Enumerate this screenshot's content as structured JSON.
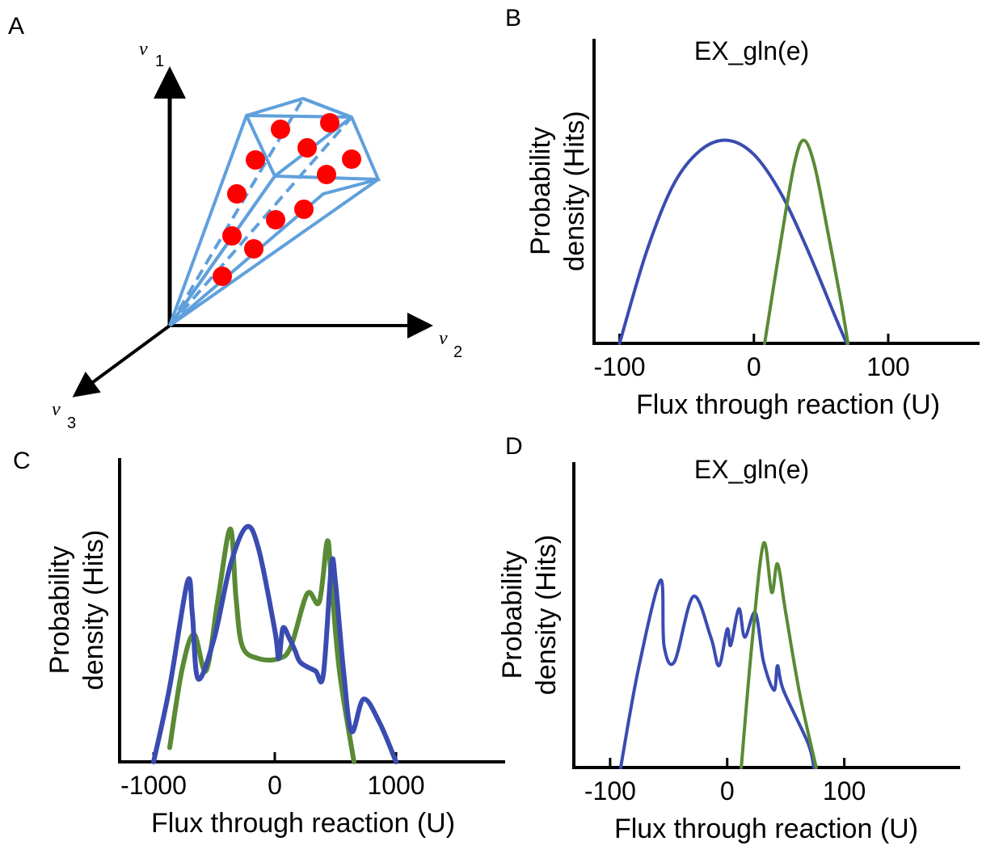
{
  "panel_labels": [
    "A",
    "B",
    "C",
    "D"
  ],
  "diagram": {
    "axis_labels": [
      {
        "symbol": "v",
        "index": "1"
      },
      {
        "symbol": "v",
        "index": "2"
      },
      {
        "symbol": "v",
        "index": "3"
      }
    ]
  },
  "chart_data": [
    {
      "type": "line",
      "title": "EX_gln(e)",
      "xlabel": "Flux through reaction (U)",
      "ylabel": [
        "Probability",
        "density (Hits)"
      ],
      "xlim": [
        -119,
        168
      ],
      "xticks": [
        -100,
        0,
        100
      ],
      "ylim": [
        0,
        1.5
      ],
      "series": [
        {
          "color": "#3a4cb0",
          "x": [
            -100,
            -80,
            -60,
            -40,
            -20,
            0,
            20,
            40,
            60,
            69
          ],
          "values": [
            0,
            0.45,
            0.78,
            0.95,
            1.0,
            0.93,
            0.74,
            0.46,
            0.14,
            0
          ]
        },
        {
          "color": "#5a8a35",
          "x": [
            8,
            20,
            30,
            37,
            45,
            55,
            65,
            70
          ],
          "values": [
            0,
            0.5,
            0.88,
            1.0,
            0.88,
            0.55,
            0.2,
            0
          ]
        }
      ]
    },
    {
      "type": "line",
      "xlabel": "Flux through reaction (U)",
      "ylabel": [
        "Probability",
        "density (Hits)"
      ],
      "xlim": [
        -1280,
        1900
      ],
      "xticks": [
        -1000,
        0,
        1000
      ],
      "ylim": [
        0,
        1.5
      ],
      "series": [
        {
          "color": "#5a8a35",
          "x": [
            -867,
            -767,
            -667,
            -567,
            -467,
            -367,
            -320,
            -267,
            -133,
            33,
            133,
            267,
            367,
            433,
            467,
            533,
            653
          ],
          "values": [
            0.07,
            0.45,
            0.63,
            0.45,
            0.81,
            1.15,
            0.81,
            0.57,
            0.51,
            0.51,
            0.57,
            0.83,
            0.79,
            1.09,
            0.89,
            0.45,
            0
          ]
        },
        {
          "color": "#3a4cb0",
          "x": [
            -1000,
            -867,
            -720,
            -680,
            -633,
            -500,
            -367,
            -233,
            -133,
            0,
            33,
            67,
            120,
            167,
            213,
            333,
            400,
            467,
            500,
            567,
            633,
            733,
            867,
            1000
          ],
          "values": [
            0,
            0.37,
            0.89,
            0.73,
            0.41,
            0.61,
            0.97,
            1.16,
            1.05,
            0.65,
            0.51,
            0.66,
            0.61,
            0.55,
            0.49,
            0.45,
            0.43,
            0.97,
            0.89,
            0.45,
            0.15,
            0.31,
            0.19,
            0
          ]
        }
      ]
    },
    {
      "type": "line",
      "title": "EX_gln(e)",
      "xlabel": "Flux through reaction (U)",
      "ylabel": [
        "Probability",
        "density (Hits)"
      ],
      "xlim": [
        -131,
        199
      ],
      "xticks": [
        -100,
        0,
        100
      ],
      "ylim": [
        0,
        1.5
      ],
      "series": [
        {
          "color": "#3a4cb0",
          "x": [
            -91,
            -76,
            -57,
            -54,
            -45,
            -29,
            -14,
            -7,
            0,
            3,
            10,
            15,
            24,
            31,
            40,
            43,
            48,
            69,
            74
          ],
          "values": [
            0,
            0.48,
            0.92,
            0.6,
            0.52,
            0.84,
            0.64,
            0.5,
            0.68,
            0.6,
            0.78,
            0.64,
            0.76,
            0.52,
            0.38,
            0.5,
            0.38,
            0.12,
            0
          ]
        },
        {
          "color": "#5a8a35",
          "x": [
            12,
            21,
            31,
            38,
            43,
            50,
            62,
            76
          ],
          "values": [
            0,
            0.6,
            1.1,
            0.86,
            1.0,
            0.76,
            0.36,
            0
          ]
        }
      ]
    }
  ]
}
